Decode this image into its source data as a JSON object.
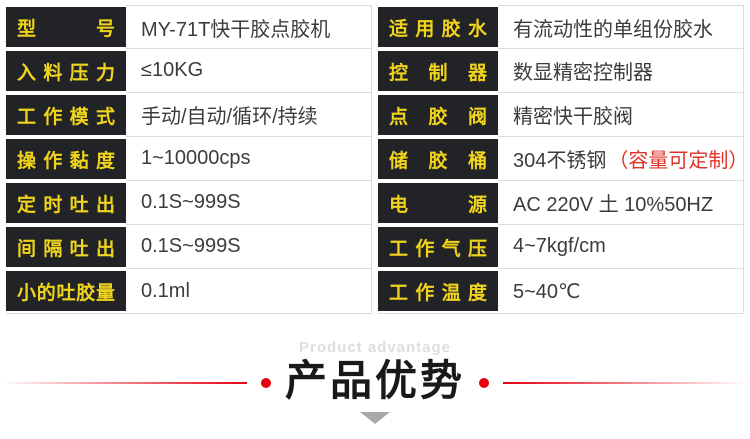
{
  "palette": {
    "label_bg": "#222326",
    "label_text": "#f0d41c",
    "value_text": "#3c3c3c",
    "grid_line": "#dcdcdc",
    "note_red": "#e03328",
    "accent_red": "#e60012",
    "subtitle_gray": "#dedede"
  },
  "specs": {
    "left": [
      {
        "label": "型 号",
        "value": "MY-71T快干胶点胶机"
      },
      {
        "label": "入料压力",
        "value": "≤10KG"
      },
      {
        "label": "工作模式",
        "value": "手动/自动/循环/持续"
      },
      {
        "label": "操作黏度",
        "value": "1~10000cps"
      },
      {
        "label": "定时吐出",
        "value": "0.1S~999S"
      },
      {
        "label": "间隔吐出",
        "value": "0.1S~999S"
      },
      {
        "label": "小的吐胶量",
        "value": "0.1ml"
      }
    ],
    "right": [
      {
        "label": "适用胶水",
        "value": "有流动性的单组份胶水"
      },
      {
        "label": "控 制 器",
        "value": "数显精密控制器"
      },
      {
        "label": "点 胶 阀",
        "value": "精密快干胶阀"
      },
      {
        "label": "储 胶 桶",
        "value": "304不锈钢",
        "value_red": "（容量可定制）"
      },
      {
        "label": "电 源",
        "value": "AC 220V 土 10%50HZ"
      },
      {
        "label": "工作气压",
        "value": "4~7kgf/cm"
      },
      {
        "label": "工作温度",
        "value": "5~40℃"
      }
    ]
  },
  "section_header": {
    "subtitle": "Product advantage",
    "title": "产品优势"
  }
}
